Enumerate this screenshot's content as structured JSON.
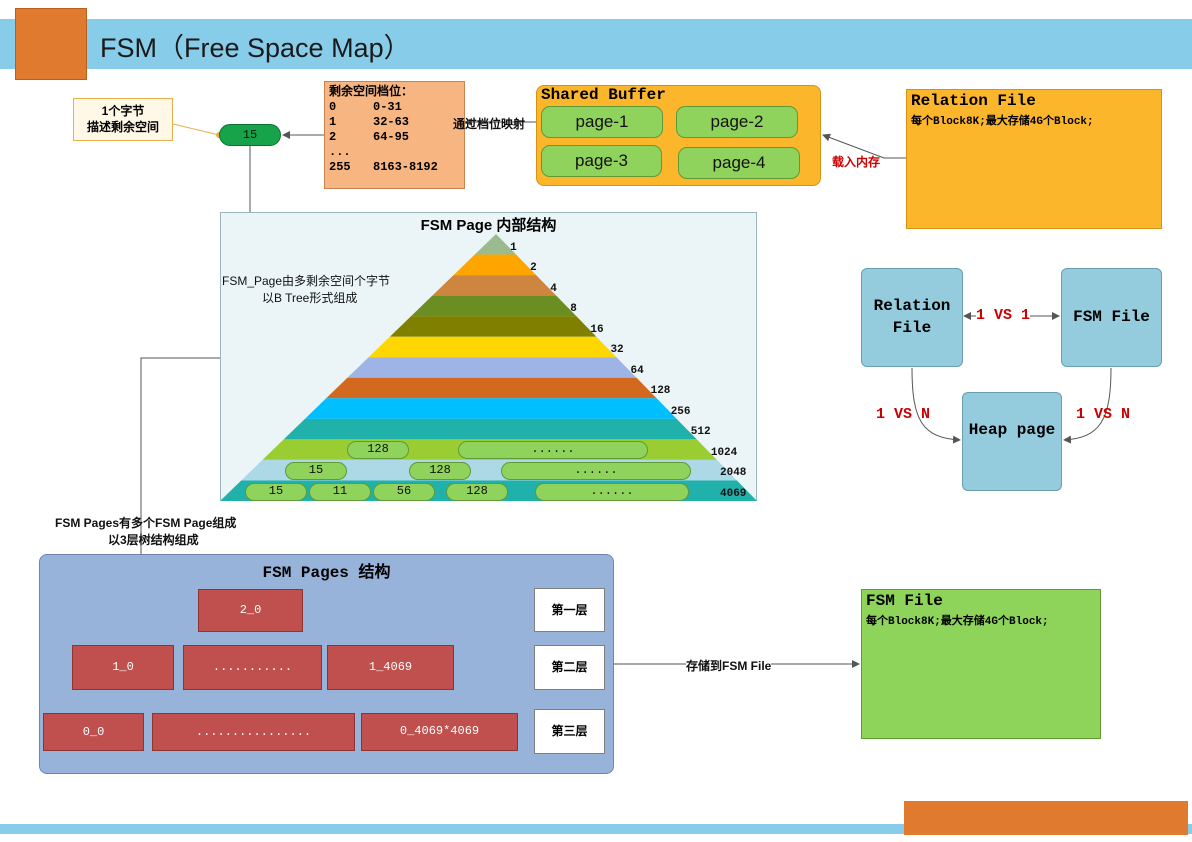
{
  "header": {
    "title": "FSM（Free Space Map）"
  },
  "note": {
    "line1": "1个字节",
    "line2": "描述剩余空间"
  },
  "pill_value": "15",
  "levels": {
    "title": "剩余空间档位：",
    "rows": [
      {
        "k": "0",
        "v": "0-31"
      },
      {
        "k": "1",
        "v": "32-63"
      },
      {
        "k": "2",
        "v": "64-95"
      },
      {
        "k": "...",
        "v": ""
      },
      {
        "k": "255",
        "v": "8163-8192"
      }
    ]
  },
  "arrows": {
    "map_label": "通过档位映射",
    "load_label": "载入内存",
    "store_label": "存储到FSM File"
  },
  "shared_buffer": {
    "title": "Shared Buffer",
    "pages": [
      "page-1",
      "page-2",
      "page-3",
      "page-4"
    ]
  },
  "relation_file": {
    "title": "Relation File",
    "desc": "每个Block8K;最大存储4G个Block;"
  },
  "fsm_page": {
    "title": "FSM Page 内部结构",
    "note_line1": "FSM_Page由多剩余空间个字节",
    "note_line2": "以B  Tree形式组成",
    "level_labels": [
      "1",
      "2",
      "4",
      "8",
      "16",
      "32",
      "64",
      "128",
      "256",
      "512",
      "1024",
      "2048",
      "4069"
    ],
    "row1": [
      "128",
      "......"
    ],
    "row2": [
      "15",
      "128",
      "......"
    ],
    "row3": [
      "15",
      "11",
      "56",
      "128",
      "......"
    ]
  },
  "relations": {
    "relation_file": "Relation File",
    "fsm_file": "FSM File",
    "heap_page": "Heap page",
    "one_one": "1 VS 1",
    "one_n_left": "1 VS N",
    "one_n_right": "1 VS N"
  },
  "fsm_pages": {
    "caption_line1": "FSM  Pages有多个FSM Page组成",
    "caption_line2": "以3层树结构组成",
    "title": "FSM Pages 结构",
    "layer1": [
      "2_0"
    ],
    "layer2": [
      "1_0",
      "...........",
      "1_4069"
    ],
    "layer3": [
      "0_0",
      "................",
      "0_4069*4069"
    ],
    "layer_names": [
      "第一层",
      "第二层",
      "第三层"
    ]
  },
  "fsm_file": {
    "title": "FSM File",
    "desc": "每个Block8K;最大存储4G个Block;"
  },
  "colors": {
    "title_bar": "#87cce9",
    "accent": "#e07a2f",
    "triangle_bands": [
      "#9bbb8f",
      "#ffa500",
      "#cd853f",
      "#6b8e23",
      "#808000",
      "#ffd700",
      "#9fb4e6",
      "#d2691e",
      "#00bfff",
      "#20b2aa",
      "#9acd32",
      "#add8e6",
      "#20b2aa"
    ]
  }
}
